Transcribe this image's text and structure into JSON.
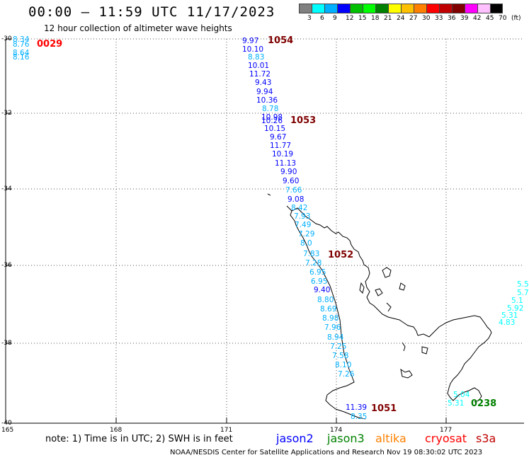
{
  "header": {
    "title": "00:00 – 11:59 UTC 11/17/2023",
    "subtitle": "12 hour collection of altimeter wave heights"
  },
  "color_scale": {
    "labels": [
      "3",
      "6",
      "9",
      "12",
      "15",
      "18",
      "21",
      "24",
      "27",
      "30",
      "33",
      "36",
      "39",
      "42",
      "45",
      "70",
      "(ft)"
    ],
    "colors": [
      "#808080",
      "#00ffff",
      "#00b0ff",
      "#0000ff",
      "#00c000",
      "#00ff00",
      "#008000",
      "#ffff00",
      "#ffc000",
      "#ff8000",
      "#ff0000",
      "#c00000",
      "#800000",
      "#ff00ff",
      "#ffc0ff",
      "#000000"
    ]
  },
  "axes": {
    "lat_labels": [
      "-30",
      "-32",
      "-34",
      "-36",
      "-38",
      "-40"
    ],
    "lon_labels": [
      "165",
      "168",
      "171",
      "174",
      "177"
    ]
  },
  "track_labels": [
    {
      "text": "0029",
      "color": "#ff0000"
    },
    {
      "text": "1054",
      "color": "#800000"
    },
    {
      "text": "1053",
      "color": "#800000"
    },
    {
      "text": "1052",
      "color": "#800000"
    },
    {
      "text": "1051",
      "color": "#800000"
    },
    {
      "text": "0238",
      "color": "#008000"
    }
  ],
  "wave_heights": [
    {
      "text": "8.34",
      "color": "#00b0ff"
    },
    {
      "text": "8.76",
      "color": "#00b0ff"
    },
    {
      "text": "8.64",
      "color": "#00b0ff"
    },
    {
      "text": "8.16",
      "color": "#00b0ff"
    },
    {
      "text": "9.97",
      "color": "#0000ff"
    },
    {
      "text": "10.10",
      "color": "#0000ff"
    },
    {
      "text": "8.83",
      "color": "#00b0ff"
    },
    {
      "text": "10.01",
      "color": "#0000ff"
    },
    {
      "text": "11.72",
      "color": "#0000ff"
    },
    {
      "text": "9.43",
      "color": "#0000ff"
    },
    {
      "text": "9.94",
      "color": "#0000ff"
    },
    {
      "text": "10.36",
      "color": "#0000ff"
    },
    {
      "text": "8.78",
      "color": "#00b0ff"
    },
    {
      "text": "10.98",
      "color": "#0000ff"
    },
    {
      "text": "10.26",
      "color": "#0000ff"
    },
    {
      "text": "10.15",
      "color": "#0000ff"
    },
    {
      "text": "9.67",
      "color": "#0000ff"
    },
    {
      "text": "11.77",
      "color": "#0000ff"
    },
    {
      "text": "10.19",
      "color": "#0000ff"
    },
    {
      "text": "11.13",
      "color": "#0000ff"
    },
    {
      "text": "9.90",
      "color": "#0000ff"
    },
    {
      "text": "9.60",
      "color": "#0000ff"
    },
    {
      "text": "7.66",
      "color": "#00b0ff"
    },
    {
      "text": "9.08",
      "color": "#0000ff"
    },
    {
      "text": "8.42",
      "color": "#00b0ff"
    },
    {
      "text": "7.93",
      "color": "#00b0ff"
    },
    {
      "text": "7.49",
      "color": "#00b0ff"
    },
    {
      "text": "7.29",
      "color": "#00b0ff"
    },
    {
      "text": "8.0",
      "color": "#00b0ff"
    },
    {
      "text": "7.83",
      "color": "#00b0ff"
    },
    {
      "text": "7.28",
      "color": "#00b0ff"
    },
    {
      "text": "6.95",
      "color": "#00b0ff"
    },
    {
      "text": "6.95",
      "color": "#00b0ff"
    },
    {
      "text": "9.40",
      "color": "#0000ff"
    },
    {
      "text": "8.80",
      "color": "#00b0ff"
    },
    {
      "text": "8.69",
      "color": "#00b0ff"
    },
    {
      "text": "8.98",
      "color": "#00b0ff"
    },
    {
      "text": "7.96",
      "color": "#00b0ff"
    },
    {
      "text": "8.94",
      "color": "#00b0ff"
    },
    {
      "text": "7.25",
      "color": "#00b0ff"
    },
    {
      "text": "7.58",
      "color": "#00b0ff"
    },
    {
      "text": "8.10",
      "color": "#00b0ff"
    },
    {
      "text": "7.26",
      "color": "#00b0ff"
    },
    {
      "text": "11.39",
      "color": "#0000ff"
    },
    {
      "text": "8.35",
      "color": "#00b0ff"
    },
    {
      "text": "5.5",
      "color": "#00ffff"
    },
    {
      "text": "5.7",
      "color": "#00ffff"
    },
    {
      "text": "5.1",
      "color": "#00ffff"
    },
    {
      "text": "5.92",
      "color": "#00ffff"
    },
    {
      "text": "5.31",
      "color": "#00ffff"
    },
    {
      "text": "4.83",
      "color": "#00ffff"
    },
    {
      "text": "5.04",
      "color": "#00ffff"
    },
    {
      "text": "5.31",
      "color": "#00ffff"
    }
  ],
  "note": "note: 1) Time is in UTC; 2) SWH is in feet",
  "satellites": [
    {
      "name": "jason2",
      "color": "#0000ff"
    },
    {
      "name": "jason3",
      "color": "#008000"
    },
    {
      "name": "altika",
      "color": "#ff8000"
    },
    {
      "name": "cryosat",
      "color": "#ff0000"
    },
    {
      "name": "s3a",
      "color": "#c00000"
    }
  ],
  "footer": "NOAA/NESDIS Center for Satellite Applications and Research   Nov 19 08:30:02 UTC 2023"
}
